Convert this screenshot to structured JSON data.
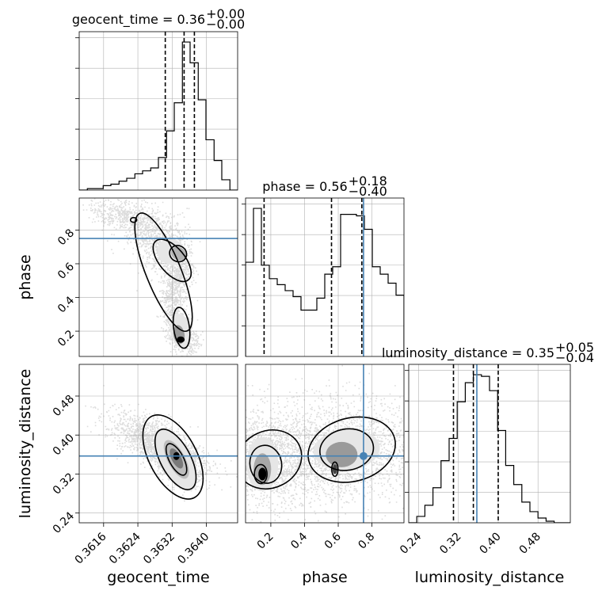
{
  "chart_data": {
    "type": "corner",
    "parameters": [
      "geocent_time",
      "phase",
      "luminosity_distance"
    ],
    "titles": [
      {
        "param": "geocent_time",
        "prefix": "geocent_time = ",
        "median": "0.36",
        "plus": "+0.00",
        "minus": "−0.00"
      },
      {
        "param": "phase",
        "prefix": "phase = ",
        "median": "0.56",
        "plus": "+0.18",
        "minus": "−0.40"
      },
      {
        "param": "luminosity_distance",
        "prefix": "luminosity_distance = ",
        "median": "0.35",
        "plus": "+0.05",
        "minus": "−0.04"
      }
    ],
    "axis_labels": {
      "x": [
        "geocent_time",
        "phase",
        "luminosity_distance"
      ],
      "y": [
        "phase",
        "luminosity_distance"
      ]
    },
    "ranges": {
      "geocent_time": [
        0.36103,
        0.36473
      ],
      "phase": [
        0.05,
        0.99
      ],
      "luminosity_distance": [
        0.22,
        0.545
      ]
    },
    "ticks": {
      "geocent_time": [
        "0.3616",
        "0.3624",
        "0.3632",
        "0.3640"
      ],
      "phase": [
        "0.2",
        "0.4",
        "0.6",
        "0.8"
      ],
      "luminosity_distance": [
        "0.24",
        "0.32",
        "0.40",
        "0.48"
      ]
    },
    "injection": {
      "phase": 0.75,
      "luminosity_distance": 0.357
    },
    "quantiles": {
      "geocent_time": [
        0.36304,
        0.36348,
        0.36372
      ],
      "phase": [
        0.16,
        0.56,
        0.74
      ],
      "luminosity_distance": [
        0.31,
        0.35,
        0.4
      ]
    },
    "histograms": {
      "geocent_time": {
        "edges": [
          0.36103,
          0.36122,
          0.3614,
          0.36159,
          0.36177,
          0.36196,
          0.36214,
          0.36233,
          0.36251,
          0.3627,
          0.36288,
          0.36307,
          0.36325,
          0.36344,
          0.36362,
          0.36381,
          0.36399,
          0.36418,
          0.36436,
          0.36455,
          0.36473
        ],
        "counts": [
          0,
          1,
          1,
          3,
          4,
          6,
          8,
          11,
          13,
          15,
          22,
          40,
          59,
          100,
          86,
          61,
          34,
          20,
          7,
          0
        ]
      },
      "phase": {
        "edges": [
          0.05,
          0.097,
          0.144,
          0.191,
          0.238,
          0.285,
          0.332,
          0.379,
          0.426,
          0.473,
          0.52,
          0.567,
          0.614,
          0.661,
          0.708,
          0.755,
          0.802,
          0.849,
          0.896,
          0.943,
          0.99
        ],
        "counts": [
          63,
          99,
          61,
          52,
          48,
          44,
          40,
          31,
          31,
          39,
          55,
          60,
          95,
          95,
          94,
          85,
          60,
          55,
          49,
          41
        ]
      },
      "luminosity_distance": {
        "edges": [
          0.22,
          0.23625,
          0.2525,
          0.26875,
          0.285,
          0.30125,
          0.3175,
          0.33375,
          0.35,
          0.36625,
          0.3825,
          0.39875,
          0.415,
          0.43125,
          0.4475,
          0.46375,
          0.48,
          0.49625,
          0.5125,
          0.52875,
          0.545
        ],
        "counts": [
          0,
          4,
          11,
          22,
          39,
          53,
          76,
          88,
          93,
          92,
          83,
          58,
          36,
          24,
          13,
          7,
          3,
          1,
          0,
          0
        ]
      }
    },
    "colors": {
      "line": "#000000",
      "injection": "#4682b4",
      "grid": "#b0b0b0",
      "scatter": "#9a9a9a"
    }
  }
}
